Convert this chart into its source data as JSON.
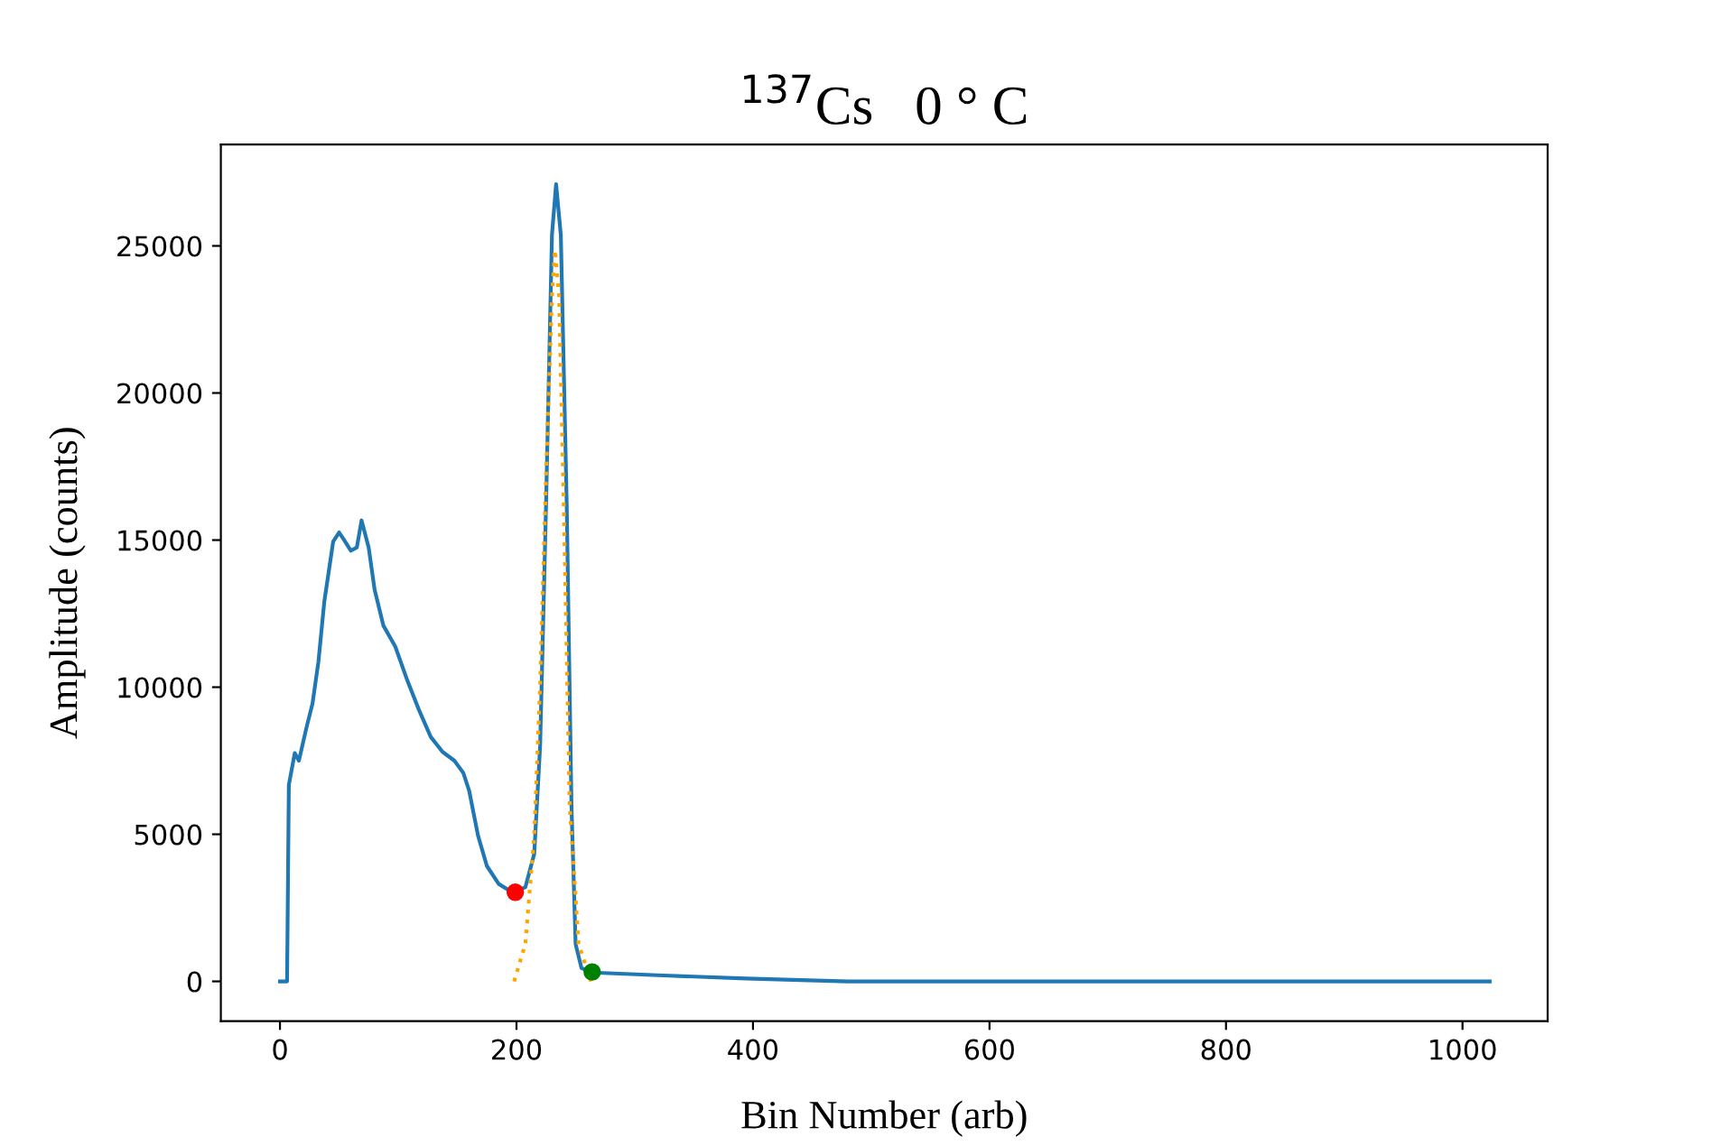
{
  "chart_data": {
    "type": "line",
    "title": "$^{137}$Cs   0 ° C",
    "xlabel": "Bin Number (arb)",
    "ylabel": "Amplitude (counts)",
    "xlim": [
      -50,
      1072
    ],
    "ylim": [
      -1350,
      28450
    ],
    "xticks": [
      0,
      200,
      400,
      600,
      800,
      1000
    ],
    "yticks": [
      0,
      5000,
      10000,
      15000,
      20000,
      25000
    ],
    "grid": false,
    "legend": false,
    "series": [
      {
        "color": "#1f77b4",
        "line_style": "solid",
        "x": [
          0,
          6,
          7.5,
          12.5,
          16,
          22.5,
          27.5,
          32.5,
          37.5,
          45,
          50,
          53.5,
          60,
          65,
          69,
          75,
          80,
          87.5,
          97.5,
          107.5,
          117.5,
          127.5,
          137.5,
          147.5,
          155,
          160,
          167.5,
          175,
          185,
          197.5,
          207.5,
          215,
          220,
          225,
          230,
          233.5,
          237.5,
          242.5,
          246.5,
          250,
          255,
          264,
          324,
          394,
          480,
          600,
          800,
          1023
        ],
        "values": [
          0,
          0,
          6680,
          7760,
          7500,
          8640,
          9440,
          10860,
          12910,
          14950,
          15260,
          15050,
          14640,
          14750,
          15670,
          14750,
          13320,
          12090,
          11380,
          10250,
          9230,
          8310,
          7800,
          7500,
          7090,
          6480,
          4950,
          3920,
          3310,
          3000,
          3200,
          4330,
          8010,
          16180,
          25370,
          27100,
          25370,
          16180,
          5960,
          1270,
          450,
          300,
          200,
          100,
          0,
          0,
          0,
          0
        ]
      },
      {
        "color": "#ffa500",
        "line_style": "dotted",
        "x": [
          198,
          207.5,
          215,
          220,
          225,
          230,
          232.5,
          236,
          240,
          245,
          252.5,
          263
        ],
        "values": [
          0,
          1270,
          4950,
          10060,
          17200,
          23300,
          24860,
          23300,
          16180,
          5960,
          1270,
          0
        ]
      },
      {
        "type": "scatter",
        "color": "#ff0000",
        "marker": "circle",
        "x": [
          199
        ],
        "values": [
          3030
        ]
      },
      {
        "type": "scatter",
        "color": "#008000",
        "marker": "circle",
        "x": [
          264
        ],
        "values": [
          320
        ]
      }
    ]
  }
}
